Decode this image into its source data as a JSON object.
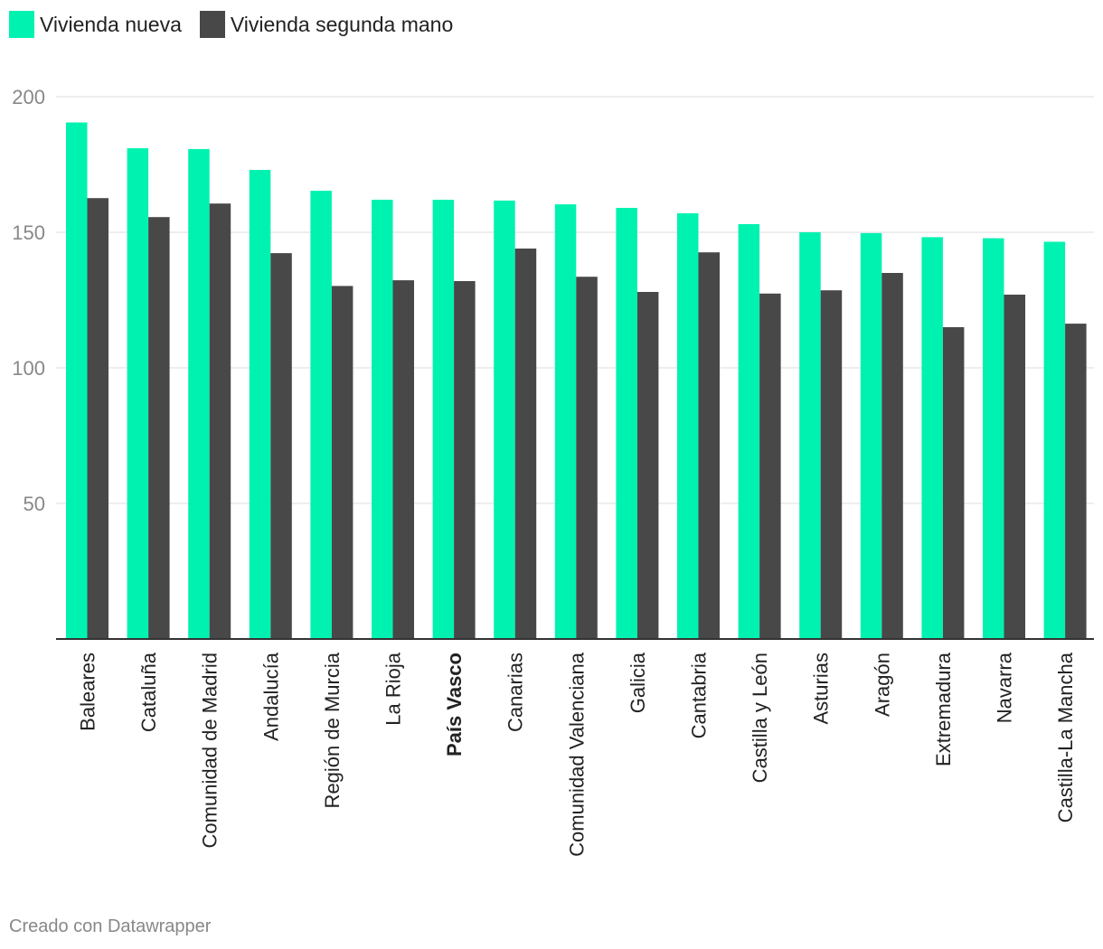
{
  "legend": [
    {
      "label": "Vivienda nueva",
      "color": "#00f2b0"
    },
    {
      "label": "Vivienda segunda mano",
      "color": "#484848"
    }
  ],
  "footer": "Creado con Datawrapper",
  "chart_data": {
    "type": "bar",
    "grouped": true,
    "categories": [
      "Baleares",
      "Cataluña",
      "Comunidad de Madrid",
      "Andalucía",
      "Región de Murcia",
      "La Rioja",
      "País Vasco",
      "Canarias",
      "Comunidad Valenciana",
      "Galicia",
      "Cantabria",
      "Castilla y León",
      "Asturias",
      "Aragón",
      "Extremadura",
      "Navarra",
      "Castilla-La Mancha"
    ],
    "highlighted_category": "País Vasco",
    "series": [
      {
        "name": "Vivienda nueva",
        "color": "#00f2b0",
        "values": [
          190.5,
          181,
          180.7,
          173,
          165.3,
          162,
          162,
          161.7,
          160.3,
          159,
          157,
          153,
          150,
          149.7,
          148.2,
          147.8,
          146.5
        ]
      },
      {
        "name": "Vivienda segunda mano",
        "color": "#484848",
        "values": [
          162.6,
          155.6,
          160.6,
          142.3,
          130.2,
          132.3,
          132,
          144,
          133.6,
          128,
          142.6,
          127.4,
          128.6,
          135,
          115,
          127,
          116.3
        ]
      }
    ],
    "yticks": [
      50,
      100,
      150,
      200
    ],
    "ylim": [
      0,
      200
    ],
    "grid": true,
    "legend_position": "top-left"
  }
}
